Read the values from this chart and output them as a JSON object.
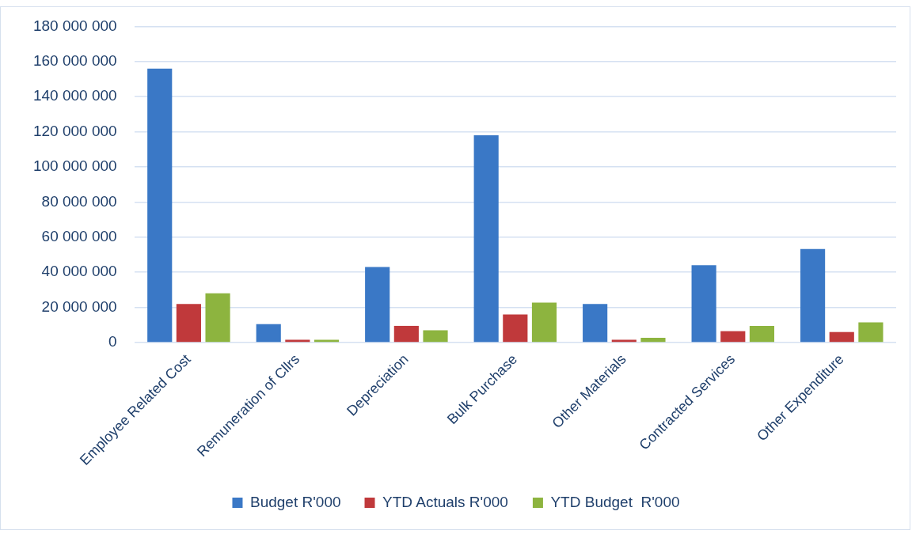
{
  "chart_data": {
    "type": "bar",
    "categories": [
      "Employee Related Cost",
      "Remuneration of Cllrs",
      "Depreciation",
      "Bulk Purchase",
      "Other Materials",
      "Contracted Services",
      "Other Expenditure"
    ],
    "series": [
      {
        "name": "Budget R'000",
        "color": "#3a78c6",
        "values": [
          156000000,
          10500000,
          43000000,
          118000000,
          22000000,
          44000000,
          53300000
        ]
      },
      {
        "name": "YTD Actuals R'000",
        "color": "#c0393b",
        "values": [
          22000000,
          1600000,
          9500000,
          16000000,
          1600000,
          6500000,
          6000000
        ]
      },
      {
        "name": "YTD Budget  R'000",
        "color": "#8db43f",
        "values": [
          28000000,
          1600000,
          7000000,
          22700000,
          2700000,
          9500000,
          11500000
        ]
      }
    ],
    "ylim": [
      0,
      180000000
    ],
    "yticks": [
      {
        "value": 0,
        "label": "0"
      },
      {
        "value": 20000000,
        "label": "20 000 000"
      },
      {
        "value": 40000000,
        "label": "40 000 000"
      },
      {
        "value": 60000000,
        "label": "60 000 000"
      },
      {
        "value": 80000000,
        "label": "80 000 000"
      },
      {
        "value": 100000000,
        "label": "100 000 000"
      },
      {
        "value": 120000000,
        "label": "120 000 000"
      },
      {
        "value": 140000000,
        "label": "140 000 000"
      },
      {
        "value": 160000000,
        "label": "160 000 000"
      },
      {
        "value": 180000000,
        "label": "180 000 000"
      }
    ],
    "grid": "y",
    "legend": "bottom"
  }
}
